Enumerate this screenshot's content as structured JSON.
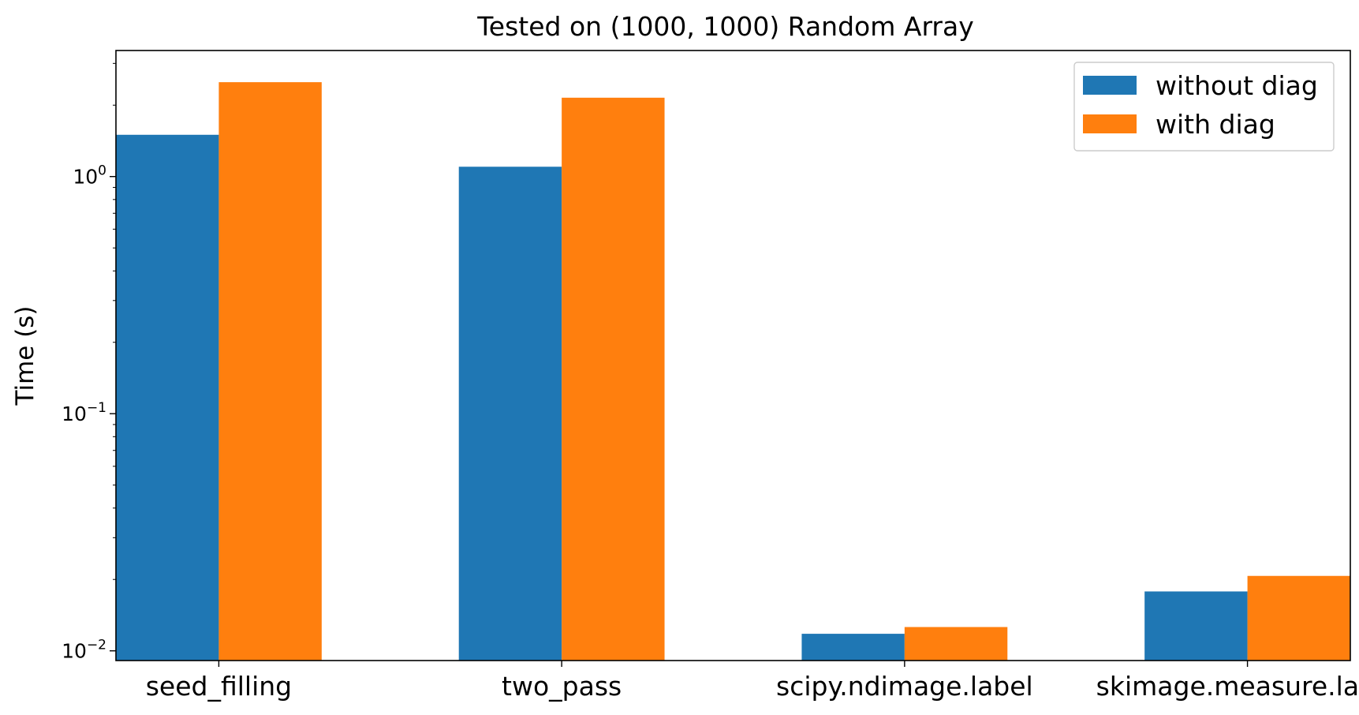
{
  "chart_data": {
    "type": "bar",
    "title": "Tested on (1000, 1000) Random Array",
    "xlabel": "",
    "ylabel": "Time (s)",
    "yscale": "log",
    "ylim": [
      0.0091,
      3.4
    ],
    "categories": [
      "seed_filling",
      "two_pass",
      "scipy.ndimage.label",
      "skimage.measure.label"
    ],
    "series": [
      {
        "name": "without diag",
        "color": "#1f77b4",
        "values": [
          1.5,
          1.1,
          0.0118,
          0.0178
        ]
      },
      {
        "name": "with diag",
        "color": "#ff7f0e",
        "values": [
          2.5,
          2.15,
          0.0126,
          0.0207
        ]
      }
    ],
    "yticks": [
      {
        "value": 0.01,
        "base": "10",
        "exp": "−2"
      },
      {
        "value": 0.1,
        "base": "10",
        "exp": "−1"
      },
      {
        "value": 1,
        "base": "10",
        "exp": "0"
      }
    ],
    "legend": {
      "position": "upper right"
    },
    "grid": false
  }
}
